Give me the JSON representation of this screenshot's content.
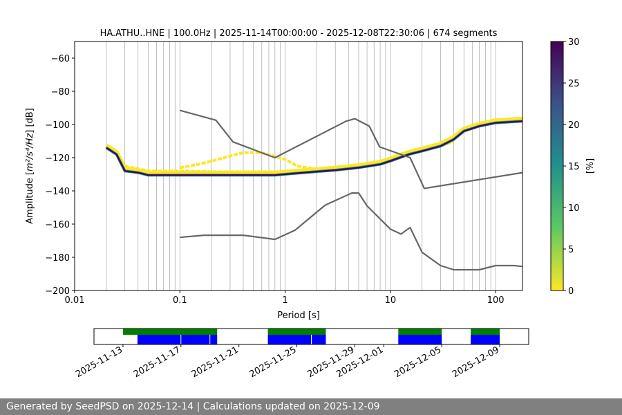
{
  "footer": {
    "text": "Generated by SeedPSD on 2025-12-14 | Calculations updated on 2025-12-09"
  },
  "chart_data": [
    {
      "type": "heatmap",
      "title": "HA.ATHU..HNE | 100.0Hz | 2025-11-14T00:00:00 - 2025-12-08T22:30:06 | 674 segments",
      "xlabel": "Period [s]",
      "ylabel_prefix": "Amplitude [",
      "ylabel_unit": "m²/s⁴/Hz",
      "ylabel_suffix": "] [dB]",
      "xscale": "log",
      "xlim": [
        0.01,
        180
      ],
      "ylim": [
        -200,
        -50
      ],
      "xticks": [
        0.01,
        0.1,
        1,
        10,
        100
      ],
      "xtick_labels": [
        "0.01",
        "0.1",
        "1",
        "10",
        "100"
      ],
      "yticks": [
        -200,
        -180,
        -160,
        -140,
        -120,
        -100,
        -80,
        -60
      ],
      "ytick_labels": [
        "−200",
        "−180",
        "−160",
        "−140",
        "−120",
        "−100",
        "−80",
        "−60"
      ],
      "grid": "vertical",
      "colorbar": {
        "label": "[%]",
        "range": [
          0,
          30
        ],
        "ticks": [
          0,
          5,
          10,
          15,
          20,
          25,
          30
        ],
        "tick_labels": [
          "0",
          "5",
          "10",
          "15",
          "20",
          "25",
          "30"
        ],
        "colormap": "viridis_r"
      },
      "noise_models": [
        {
          "points": [
            [
              0.1,
              -91.5
            ],
            [
              0.22,
              -97.4
            ],
            [
              0.32,
              -110.5
            ],
            [
              0.8,
              -120
            ],
            [
              3.8,
              -98
            ],
            [
              4.6,
              -96.5
            ],
            [
              6.3,
              -101
            ],
            [
              7.9,
              -113.5
            ],
            [
              15.4,
              -120
            ],
            [
              21,
              -138.5
            ],
            [
              180,
              -129
            ]
          ]
        },
        {
          "points": [
            [
              0.1,
              -168
            ],
            [
              0.17,
              -166.7
            ],
            [
              0.4,
              -166.7
            ],
            [
              0.8,
              -169.2
            ],
            [
              1.24,
              -163.7
            ],
            [
              2.4,
              -148.6
            ],
            [
              4.3,
              -141.3
            ],
            [
              5.0,
              -141.3
            ],
            [
              6.0,
              -149
            ],
            [
              10,
              -163
            ],
            [
              12.6,
              -166
            ],
            [
              15.4,
              -162.1
            ],
            [
              20,
              -177
            ],
            [
              30,
              -185
            ],
            [
              40,
              -187.5
            ],
            [
              70,
              -187.5
            ],
            [
              100,
              -185
            ],
            [
              150,
              -185
            ],
            [
              180,
              -185.5
            ]
          ]
        }
      ],
      "psd_dominant": {
        "points": [
          [
            0.02,
            -114
          ],
          [
            0.025,
            -118
          ],
          [
            0.03,
            -128
          ],
          [
            0.04,
            -129
          ],
          [
            0.05,
            -130.5
          ],
          [
            0.1,
            -130.5
          ],
          [
            0.3,
            -130.5
          ],
          [
            0.8,
            -130.5
          ],
          [
            1.5,
            -129
          ],
          [
            3,
            -127.5
          ],
          [
            5,
            -126
          ],
          [
            8,
            -124
          ],
          [
            10,
            -122
          ],
          [
            15,
            -118
          ],
          [
            20,
            -116
          ],
          [
            30,
            -113
          ],
          [
            40,
            -109
          ],
          [
            50,
            -104
          ],
          [
            70,
            -101
          ],
          [
            100,
            -99
          ],
          [
            180,
            -98
          ]
        ]
      },
      "psd_secondary": [
        {
          "points": [
            [
              0.03,
              -125
            ],
            [
              0.05,
              -128
            ],
            [
              0.1,
              -128
            ],
            [
              0.2,
              -128.5
            ],
            [
              0.5,
              -128.5
            ],
            [
              1,
              -128.5
            ],
            [
              2,
              -128
            ],
            [
              3,
              -127
            ]
          ]
        },
        {
          "points": [
            [
              0.1,
              -126
            ],
            [
              0.15,
              -124
            ],
            [
              0.2,
              -122
            ],
            [
              0.3,
              -119
            ],
            [
              0.4,
              -117
            ],
            [
              0.6,
              -117
            ],
            [
              1,
              -121
            ],
            [
              1.3,
              -125
            ],
            [
              2,
              -127
            ]
          ]
        },
        {
          "points": [
            [
              15,
              -117
            ],
            [
              20,
              -114
            ],
            [
              30,
              -113
            ],
            [
              40,
              -110
            ]
          ]
        }
      ]
    },
    {
      "type": "bar",
      "xscale": "date",
      "xlim": [
        "2025-11-11",
        "2025-12-11"
      ],
      "xticks": [
        "2025-11-13",
        "2025-11-17",
        "2025-11-21",
        "2025-11-25",
        "2025-11-29",
        "2025-12-01",
        "2025-12-05",
        "2025-12-09"
      ],
      "green_color": "#008000",
      "blue_color": "#0000ff",
      "green_intervals": [
        [
          "2025-11-13",
          "2025-11-19.5"
        ],
        [
          "2025-11-23",
          "2025-11-27"
        ],
        [
          "2025-12-02",
          "2025-12-05"
        ],
        [
          "2025-12-07",
          "2025-12-09"
        ]
      ],
      "blue_intervals": [
        [
          "2025-11-14",
          "2025-11-19.5"
        ],
        [
          "2025-11-23",
          "2025-11-27"
        ],
        [
          "2025-12-02",
          "2025-12-05"
        ],
        [
          "2025-12-07",
          "2025-12-09"
        ]
      ],
      "gap_lines": [
        "2025-11-17",
        "2025-11-19",
        "2025-11-26"
      ]
    }
  ]
}
